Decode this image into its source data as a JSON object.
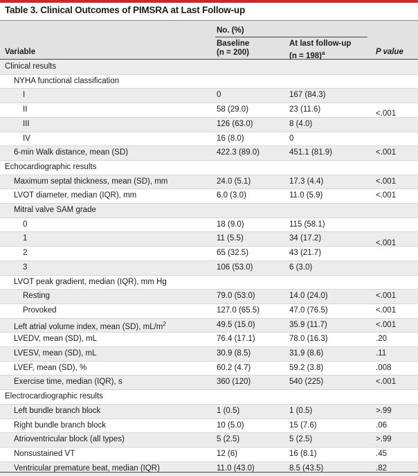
{
  "title": "Table 3. Clinical Outcomes of PIMSRA at Last Follow-up",
  "header": {
    "group": "No. (%)",
    "variable": "Variable",
    "baseline_1": "Baseline",
    "baseline_2": "(n = 200)",
    "followup_1": "At last follow-up",
    "followup_2": "(n = 198)",
    "followup_sup": "a",
    "p": "P value"
  },
  "rows": [
    {
      "label": "Clinical results",
      "b": "",
      "f": "",
      "p": ""
    },
    {
      "label": "NYHA functional classification",
      "b": "",
      "f": "",
      "p": ""
    },
    {
      "label": "I",
      "b": "0",
      "f": "167 (84.3)",
      "p": ""
    },
    {
      "label": "II",
      "b": "58 (29.0)",
      "f": "23 (11.6)",
      "p": ""
    },
    {
      "label": "III",
      "b": "126 (63.0)",
      "f": "8 (4.0)",
      "p": ""
    },
    {
      "label": "IV",
      "b": "16 (8.0)",
      "f": "0",
      "p": ""
    },
    {
      "label": "6-min Walk distance, mean (SD)",
      "b": "422.3 (89.0)",
      "f": "451.1 (81.9)",
      "p": "<.001"
    },
    {
      "label": "Echocardiographic results",
      "b": "",
      "f": "",
      "p": ""
    },
    {
      "label": "Maximum septal thickness, mean (SD), mm",
      "b": "24.0 (5.1)",
      "f": "17.3 (4.4)",
      "p": "<.001"
    },
    {
      "label": "LVOT diameter, median (IQR), mm",
      "b": "6.0 (3.0)",
      "f": "11.0 (5.9)",
      "p": "<.001"
    },
    {
      "label": "Mitral valve SAM grade",
      "b": "",
      "f": "",
      "p": ""
    },
    {
      "label": "0",
      "b": "18 (9.0)",
      "f": "115 (58.1)",
      "p": ""
    },
    {
      "label": "1",
      "b": "11 (5.5)",
      "f": "34 (17.2)",
      "p": ""
    },
    {
      "label": "2",
      "b": "65 (32.5)",
      "f": "43 (21.7)",
      "p": ""
    },
    {
      "label": "3",
      "b": "106 (53.0)",
      "f": "6 (3.0)",
      "p": ""
    },
    {
      "label": "LVOT peak gradient, median (IQR), mm Hg",
      "b": "",
      "f": "",
      "p": ""
    },
    {
      "label": "Resting",
      "b": "79.0 (53.0)",
      "f": "14.0 (24.0)",
      "p": "<.001"
    },
    {
      "label": "Provoked",
      "b": "127.0 (65.5)",
      "f": "47.0 (76.5)",
      "p": "<.001"
    },
    {
      "label": "Left atrial volume index, mean (SD), mL/m",
      "sup": "2",
      "b": "49.5 (15.0)",
      "f": "35.9 (11.7)",
      "p": "<.001"
    },
    {
      "label": "LVEDV, mean (SD), mL",
      "b": "76.4 (17.1)",
      "f": "78.0 (16.3)",
      "p": ".20"
    },
    {
      "label": "LVESV, mean (SD), mL",
      "b": "30.9 (8.5)",
      "f": "31.9 (8.6)",
      "p": ".11"
    },
    {
      "label": "LVEF, mean (SD), %",
      "b": "60.2 (4.7)",
      "f": "59.2 (3.8)",
      "p": ".008"
    },
    {
      "label": "Exercise time, median (IQR), s",
      "b": "360 (120)",
      "f": "540 (225)",
      "p": "<.001"
    },
    {
      "label": "Electrocardiographic results",
      "b": "",
      "f": "",
      "p": ""
    },
    {
      "label": "Left bundle branch block",
      "b": "1 (0.5)",
      "f": "1 (0.5)",
      "p": ">.99"
    },
    {
      "label": "Right bundle branch block",
      "b": "10 (5.0)",
      "f": "15 (7.6)",
      "p": ".06"
    },
    {
      "label": "Atrioventricular block (all types)",
      "b": "5 (2.5)",
      "f": "5 (2.5)",
      "p": ">.99"
    },
    {
      "label": "Nonsustained VT",
      "b": "12 (6)",
      "f": "16 (8.1)",
      "p": ".45"
    },
    {
      "label": "Ventricular premature beat, median (IQR)",
      "b": "11.0 (43.0)",
      "f": "8.5 (43.5)",
      "p": ".82"
    }
  ],
  "merged_p": {
    "nyha": "<.001",
    "sam": "<.001"
  }
}
